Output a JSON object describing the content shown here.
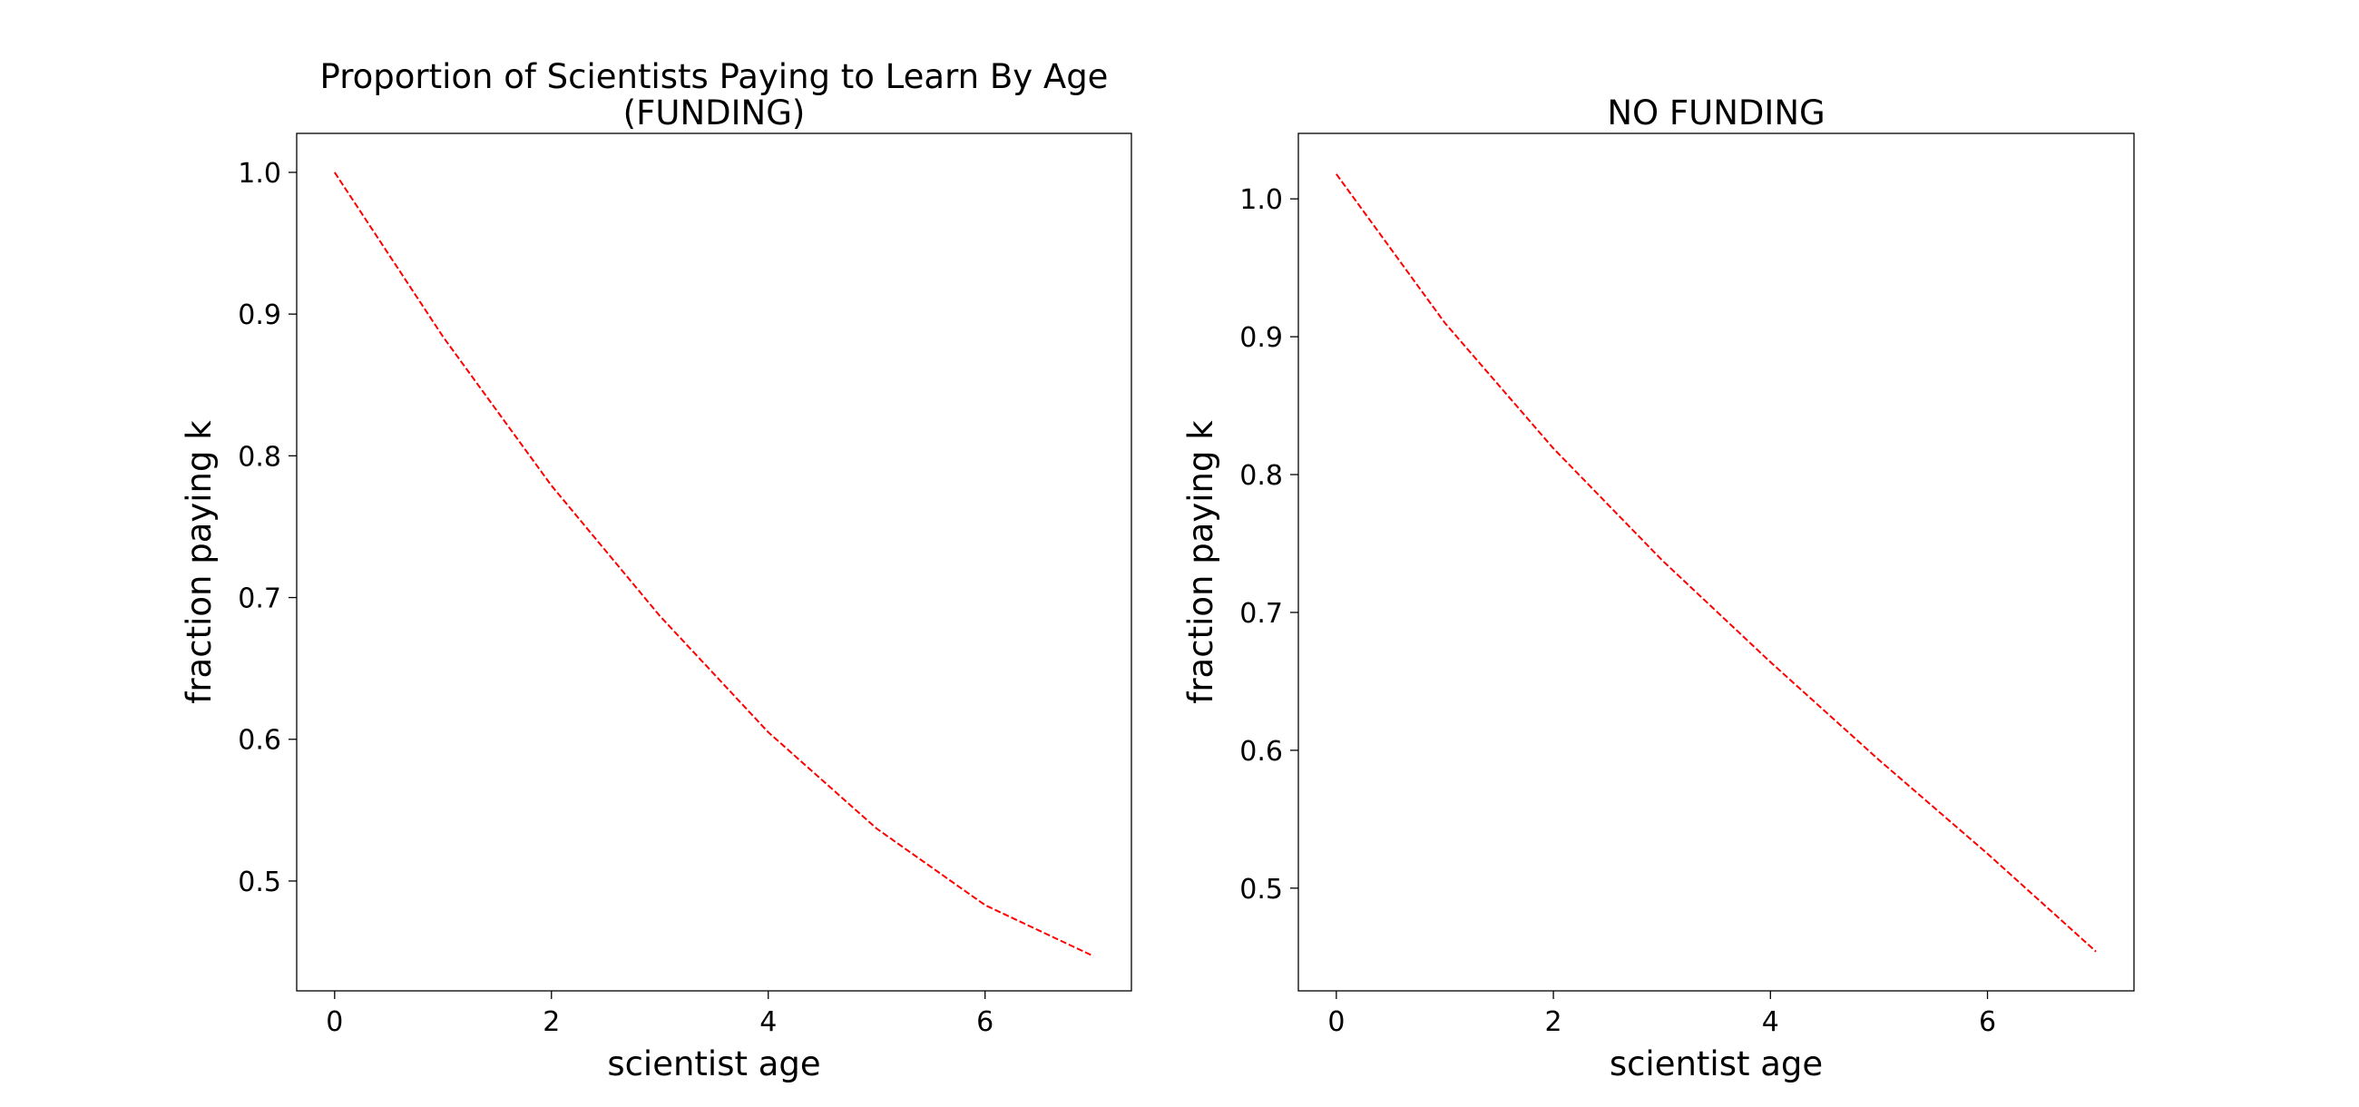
{
  "chart_data": [
    {
      "type": "line",
      "title_lines": [
        "Proportion of Scientists Paying to Learn By Age",
        "(FUNDING)"
      ],
      "xlabel": "scientist age",
      "ylabel": "fraction paying k",
      "xlim": [
        -0.35,
        7.35
      ],
      "ylim": [
        0.4225,
        1.0275
      ],
      "xticks": [
        0,
        2,
        4,
        6
      ],
      "xtick_labels": [
        "0",
        "2",
        "4",
        "6"
      ],
      "yticks": [
        0.5,
        0.6,
        0.7,
        0.8,
        0.9,
        1.0
      ],
      "ytick_labels": [
        "0.5",
        "0.6",
        "0.7",
        "0.8",
        "0.9",
        "1.0"
      ],
      "grid": false,
      "series": [
        {
          "color": "#ff0000",
          "linestyle": "dashed",
          "x": [
            0,
            1,
            2,
            3,
            4,
            5,
            6,
            7
          ],
          "y": [
            1.0,
            0.884,
            0.779,
            0.687,
            0.605,
            0.537,
            0.483,
            0.447
          ]
        }
      ]
    },
    {
      "type": "line",
      "title_lines": [
        "NO FUNDING"
      ],
      "xlabel": "scientist age",
      "ylabel": "fraction paying k",
      "xlim": [
        -0.35,
        7.35
      ],
      "ylim": [
        0.4255,
        1.0475
      ],
      "xticks": [
        0,
        2,
        4,
        6
      ],
      "xtick_labels": [
        "0",
        "2",
        "4",
        "6"
      ],
      "yticks": [
        0.5,
        0.6,
        0.7,
        0.8,
        0.9,
        1.0
      ],
      "ytick_labels": [
        "0.5",
        "0.6",
        "0.7",
        "0.8",
        "0.9",
        "1.0"
      ],
      "grid": false,
      "series": [
        {
          "color": "#ff0000",
          "linestyle": "dashed",
          "x": [
            0,
            1,
            2,
            3,
            4,
            5,
            6,
            7
          ],
          "y": [
            1.018,
            0.91,
            0.819,
            0.738,
            0.664,
            0.593,
            0.525,
            0.454
          ]
        }
      ]
    }
  ]
}
